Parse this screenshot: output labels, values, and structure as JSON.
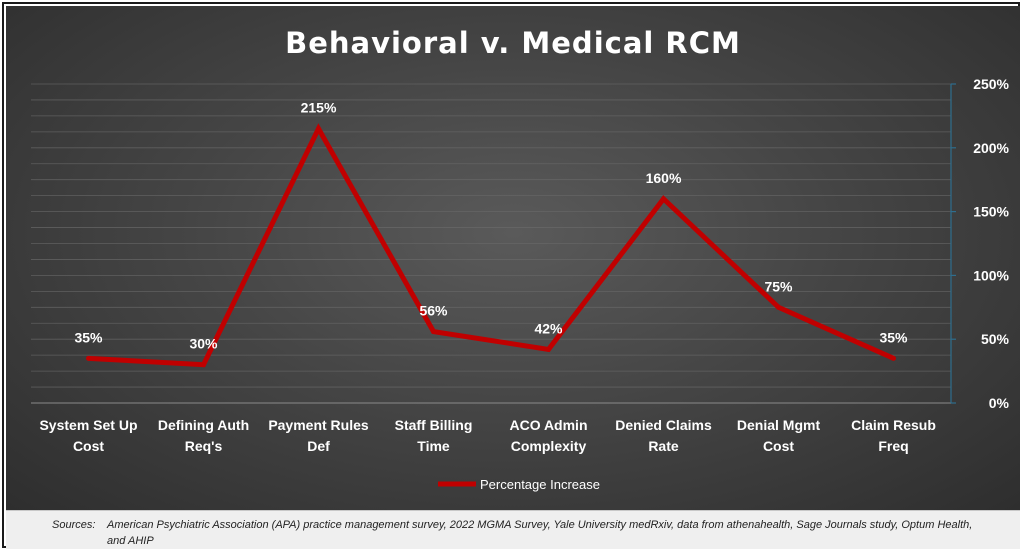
{
  "chart_data": {
    "type": "line",
    "title": "Behavioral v. Medical RCM",
    "categories": [
      [
        "System Set Up",
        "Cost"
      ],
      [
        "Defining Auth",
        "Req's"
      ],
      [
        "Payment Rules",
        "Def"
      ],
      [
        "Staff Billing",
        "Time"
      ],
      [
        "ACO Admin",
        "Complexity"
      ],
      [
        "Denied Claims",
        "Rate"
      ],
      [
        "Denial Mgmt",
        "Cost"
      ],
      [
        "Claim Resub",
        "Freq"
      ]
    ],
    "series": [
      {
        "name": "Percentage Increase",
        "values": [
          35,
          30,
          215,
          56,
          42,
          160,
          75,
          35
        ],
        "data_labels": [
          "35%",
          "30%",
          "215%",
          "56%",
          "42%",
          "160%",
          "75%",
          "35%"
        ],
        "color": "#c00000"
      }
    ],
    "y_axis": {
      "position": "right",
      "min": 0,
      "max": 250,
      "major_step": 50,
      "tick_labels": [
        "0%",
        "50%",
        "100%",
        "150%",
        "200%",
        "250%"
      ],
      "minor_gridlines_step": 12.5
    },
    "grid": true,
    "legend": "bottom"
  },
  "colors": {
    "line": "#c00000",
    "gridline": "#6a6a6a",
    "axis": "#2e6e8e",
    "text": "#ffffff"
  },
  "sources": {
    "label": "Sources:",
    "text": "American Psychiatric Association (APA) practice management survey, 2022 MGMA Survey, Yale University medRxiv, data from athenahealth, Sage Journals study, Optum Health, and AHIP"
  }
}
